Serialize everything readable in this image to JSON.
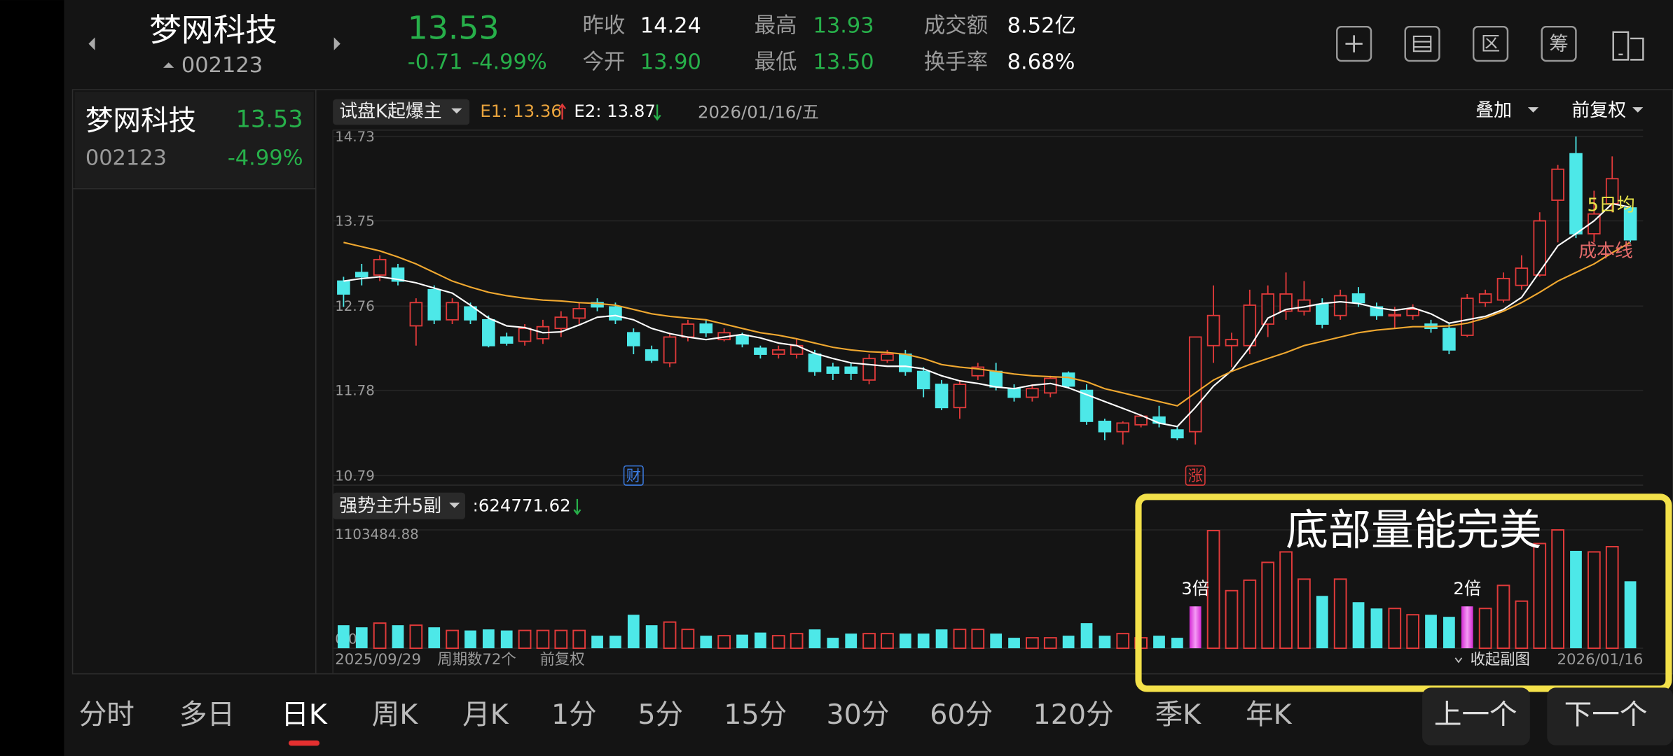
{
  "header": {
    "name": "梦网科技",
    "code": "002123",
    "price": "13.53",
    "change": "-0.71",
    "change_pct": "-4.99%",
    "stats": [
      {
        "label": "昨收",
        "value": "14.24",
        "color": "#ffffff"
      },
      {
        "label": "今开",
        "value": "13.90",
        "color": "#27b04a"
      },
      {
        "label": "最高",
        "value": "13.93",
        "color": "#27b04a"
      },
      {
        "label": "最低",
        "value": "13.50",
        "color": "#27b04a"
      },
      {
        "label": "成交额",
        "value": "8.52亿",
        "color": "#ffffff"
      },
      {
        "label": "换手率",
        "value": "8.68%",
        "color": "#ffffff"
      }
    ],
    "icons": [
      "区",
      "筹"
    ]
  },
  "watchlist": [
    {
      "name": "梦网科技",
      "price": "13.53",
      "code": "002123",
      "change_pct": "-4.99%"
    }
  ],
  "toolbar": {
    "indicator": "试盘K起爆主",
    "e1": "E1: 13.36",
    "e2": "E2: 13.87",
    "date": "2026/01/16/五",
    "overlay": "叠加",
    "adjust": "前复权"
  },
  "chart_data": [
    {
      "type": "candlestick",
      "categories": [
        "2025/09/29",
        null,
        null,
        null,
        null,
        null,
        null,
        null,
        null,
        null,
        null,
        null,
        null,
        null,
        null,
        null,
        null,
        null,
        null,
        null,
        null,
        null,
        null,
        null,
        null,
        null,
        null,
        null,
        null,
        null,
        null,
        null,
        null,
        null,
        null,
        null,
        null,
        null,
        null,
        null,
        null,
        null,
        null,
        null,
        null,
        null,
        null,
        null,
        null,
        null,
        null,
        null,
        null,
        null,
        null,
        null,
        null,
        null,
        null,
        null,
        null,
        null,
        null,
        null,
        null,
        null,
        null,
        null,
        null,
        null,
        null,
        "2026/01/16"
      ],
      "open": [
        13.05,
        13.15,
        13.12,
        13.2,
        12.53,
        12.95,
        12.6,
        12.75,
        12.6,
        12.4,
        12.35,
        12.38,
        12.5,
        12.62,
        12.8,
        12.75,
        12.45,
        12.25,
        12.1,
        12.4,
        12.55,
        12.37,
        12.42,
        12.27,
        12.2,
        12.2,
        12.2,
        12.05,
        12.05,
        11.9,
        12.13,
        12.2,
        12.0,
        11.85,
        11.58,
        11.95,
        12.0,
        11.8,
        11.7,
        11.75,
        11.98,
        11.78,
        11.42,
        11.3,
        11.38,
        11.47,
        11.32,
        11.3,
        12.3,
        12.3,
        12.3,
        12.55,
        12.7,
        12.7,
        12.78,
        12.65,
        12.9,
        12.75,
        12.65,
        12.65,
        12.55,
        12.5,
        12.42,
        12.8,
        12.83,
        13.0,
        13.12,
        13.99,
        14.53,
        13.6,
        13.95,
        13.9
      ],
      "close": [
        12.9,
        13.1,
        13.3,
        13.05,
        12.8,
        12.6,
        12.8,
        12.6,
        12.3,
        12.33,
        12.5,
        12.52,
        12.63,
        12.73,
        12.75,
        12.6,
        12.3,
        12.13,
        12.4,
        12.55,
        12.45,
        12.45,
        12.32,
        12.2,
        12.25,
        12.3,
        12.0,
        11.98,
        11.98,
        12.15,
        12.2,
        12.0,
        11.8,
        11.58,
        11.85,
        12.05,
        11.82,
        11.7,
        11.8,
        11.92,
        11.83,
        11.42,
        11.3,
        11.4,
        11.48,
        11.4,
        11.23,
        12.4,
        12.65,
        12.37,
        12.77,
        12.9,
        12.9,
        12.83,
        12.55,
        12.88,
        12.8,
        12.65,
        12.66,
        12.72,
        12.5,
        12.25,
        12.85,
        12.9,
        13.08,
        13.2,
        13.75,
        14.35,
        13.6,
        13.83,
        14.24,
        13.53
      ],
      "high": [
        13.1,
        13.25,
        13.35,
        13.25,
        12.85,
        13.0,
        12.85,
        12.8,
        12.65,
        12.45,
        12.55,
        12.6,
        12.7,
        12.8,
        12.85,
        12.8,
        12.5,
        12.3,
        12.45,
        12.6,
        12.6,
        12.5,
        12.45,
        12.3,
        12.3,
        12.38,
        12.25,
        12.1,
        12.1,
        12.2,
        12.25,
        12.25,
        12.05,
        11.9,
        11.9,
        12.1,
        12.1,
        11.85,
        11.85,
        11.95,
        12.0,
        11.85,
        11.45,
        11.42,
        11.5,
        11.6,
        11.35,
        12.4,
        13.0,
        12.45,
        12.95,
        13.0,
        13.15,
        13.05,
        12.85,
        12.95,
        12.98,
        12.8,
        12.75,
        12.78,
        12.6,
        12.55,
        12.9,
        12.95,
        13.15,
        13.35,
        13.85,
        14.4,
        14.73,
        14.1,
        14.5,
        13.93
      ],
      "low": [
        12.75,
        13.0,
        13.05,
        13.0,
        12.3,
        12.55,
        12.55,
        12.55,
        12.28,
        12.3,
        12.3,
        12.32,
        12.4,
        12.55,
        12.7,
        12.55,
        12.2,
        12.1,
        12.05,
        12.35,
        12.4,
        12.35,
        12.28,
        12.15,
        12.15,
        12.15,
        11.95,
        11.9,
        11.9,
        11.85,
        12.1,
        11.95,
        11.7,
        11.55,
        11.45,
        11.9,
        11.78,
        11.65,
        11.65,
        11.7,
        11.8,
        11.38,
        11.2,
        11.15,
        11.35,
        11.35,
        11.2,
        11.15,
        12.1,
        12.05,
        12.2,
        12.4,
        12.6,
        12.65,
        12.5,
        12.6,
        12.75,
        12.6,
        12.5,
        12.6,
        12.45,
        12.2,
        12.4,
        12.75,
        12.8,
        12.95,
        13.1,
        13.5,
        13.55,
        13.5,
        13.85,
        13.5
      ],
      "up_color": "#e03a3a",
      "down_color": "#4de8e8",
      "ylim": [
        10.79,
        14.73
      ],
      "yticks": [
        14.73,
        13.75,
        12.76,
        11.78,
        10.79
      ],
      "grid": true,
      "lines": [
        {
          "name": "5日均",
          "color": "#ffffff",
          "label_color": "#e8e44a",
          "values": [
            13.05,
            13.08,
            13.1,
            13.07,
            13.03,
            12.97,
            12.91,
            12.77,
            12.62,
            12.53,
            12.51,
            12.45,
            12.46,
            12.54,
            12.63,
            12.65,
            12.6,
            12.5,
            12.44,
            12.4,
            12.37,
            12.4,
            12.43,
            12.39,
            12.33,
            12.3,
            12.21,
            12.15,
            12.1,
            12.08,
            12.06,
            12.06,
            12.03,
            11.95,
            11.89,
            11.86,
            11.82,
            11.8,
            11.84,
            11.86,
            11.81,
            11.73,
            11.65,
            11.57,
            11.49,
            11.4,
            11.36,
            11.58,
            11.83,
            12.01,
            12.28,
            12.62,
            12.72,
            12.75,
            12.79,
            12.81,
            12.79,
            12.74,
            12.71,
            12.74,
            12.67,
            12.56,
            12.6,
            12.64,
            12.72,
            12.86,
            13.16,
            13.46,
            13.6,
            13.75,
            13.95,
            13.91
          ]
        },
        {
          "name": "成本线",
          "color": "#f0a830",
          "label_color": "#e46a6a",
          "values": [
            13.5,
            13.45,
            13.4,
            13.33,
            13.25,
            13.15,
            13.05,
            12.98,
            12.92,
            12.88,
            12.85,
            12.83,
            12.82,
            12.8,
            12.79,
            12.77,
            12.72,
            12.67,
            12.64,
            12.62,
            12.6,
            12.55,
            12.5,
            12.45,
            12.42,
            12.38,
            12.33,
            12.28,
            12.25,
            12.23,
            12.22,
            12.2,
            12.15,
            12.08,
            12.05,
            12.03,
            12.0,
            11.97,
            11.95,
            11.94,
            11.93,
            11.88,
            11.8,
            11.75,
            11.7,
            11.65,
            11.6,
            11.75,
            11.9,
            12.0,
            12.08,
            12.15,
            12.22,
            12.3,
            12.35,
            12.4,
            12.45,
            12.48,
            12.5,
            12.52,
            12.52,
            12.53,
            12.56,
            12.62,
            12.7,
            12.8,
            12.92,
            13.05,
            13.15,
            13.25,
            13.38,
            13.5
          ]
        }
      ],
      "annotations": [
        {
          "index": 16,
          "text": "财",
          "color": "#3b7be0"
        },
        {
          "index": 47,
          "text": "涨",
          "color": "#e03a3a"
        }
      ]
    },
    {
      "type": "bar",
      "indicator": "强势主升5副",
      "readout": ":624771.62",
      "values": [
        214830,
        195300,
        234360,
        214830,
        214830,
        195300,
        166005,
        166005,
        175770,
        166005,
        166005,
        166005,
        166005,
        166005,
        117180,
        117180,
        312480,
        214830,
        244125,
        175770,
        117180,
        117180,
        126945,
        146475,
        117180,
        136710,
        175770,
        97650,
        136710,
        136710,
        136710,
        136710,
        136710,
        175770,
        175770,
        175770,
        136710,
        97650,
        97650,
        97650,
        117180,
        234360,
        117180,
        136710,
        97650,
        117180,
        97650,
        390600,
        1097000,
        537075,
        634725,
        800730,
        898380,
        644490,
        488250,
        644490,
        429660,
        371070,
        371070,
        312480,
        312480,
        292950,
        390600,
        371070,
        585900,
        439425,
        976500,
        1103484.88,
        908145,
        898380,
        947205,
        624771.62
      ],
      "highlight_color": "#d42ad4",
      "ylim": [
        0,
        1103484.88
      ],
      "yticks": [
        {
          "value": 0,
          "label": "0.00"
        },
        1103484.88
      ],
      "annotations": [
        {
          "index": 47,
          "text": "3倍"
        },
        {
          "index": 62,
          "text": "2倍"
        }
      ],
      "callout": "底部量能完美",
      "callout_color": "#f3e14a"
    }
  ],
  "footer": {
    "periods": "周期数72个",
    "adjust": "前复权",
    "collapse": "收起副图"
  },
  "tabs": [
    "分时",
    "多日",
    "日K",
    "周K",
    "月K",
    "1分",
    "5分",
    "15分",
    "30分",
    "60分",
    "120分",
    "季K",
    "年K"
  ],
  "active_tab": 2,
  "buttons": [
    "上一个",
    "下一个"
  ]
}
